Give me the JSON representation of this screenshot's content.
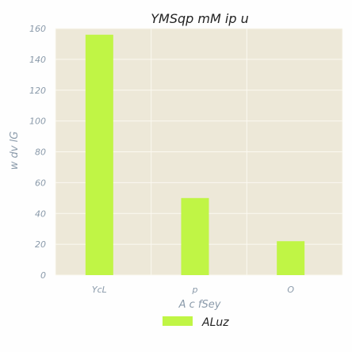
{
  "chart_data": {
    "type": "bar",
    "title": "YMSqp mM ip u",
    "xlabel": "A c fSey",
    "ylabel": "w dv lG",
    "categories": [
      "YcL",
      "p",
      "O"
    ],
    "series": [
      {
        "name": "ALuz",
        "values": [
          156,
          50,
          22
        ]
      }
    ],
    "ylim": [
      0,
      160
    ],
    "yticks": [
      0,
      20,
      40,
      60,
      80,
      100,
      120,
      140,
      160
    ],
    "grid": true,
    "legend": "bottom-center"
  },
  "colors": {
    "bar": "#c0f545",
    "plot_background": "#ede8d8",
    "grid": "#fbf9f1"
  }
}
